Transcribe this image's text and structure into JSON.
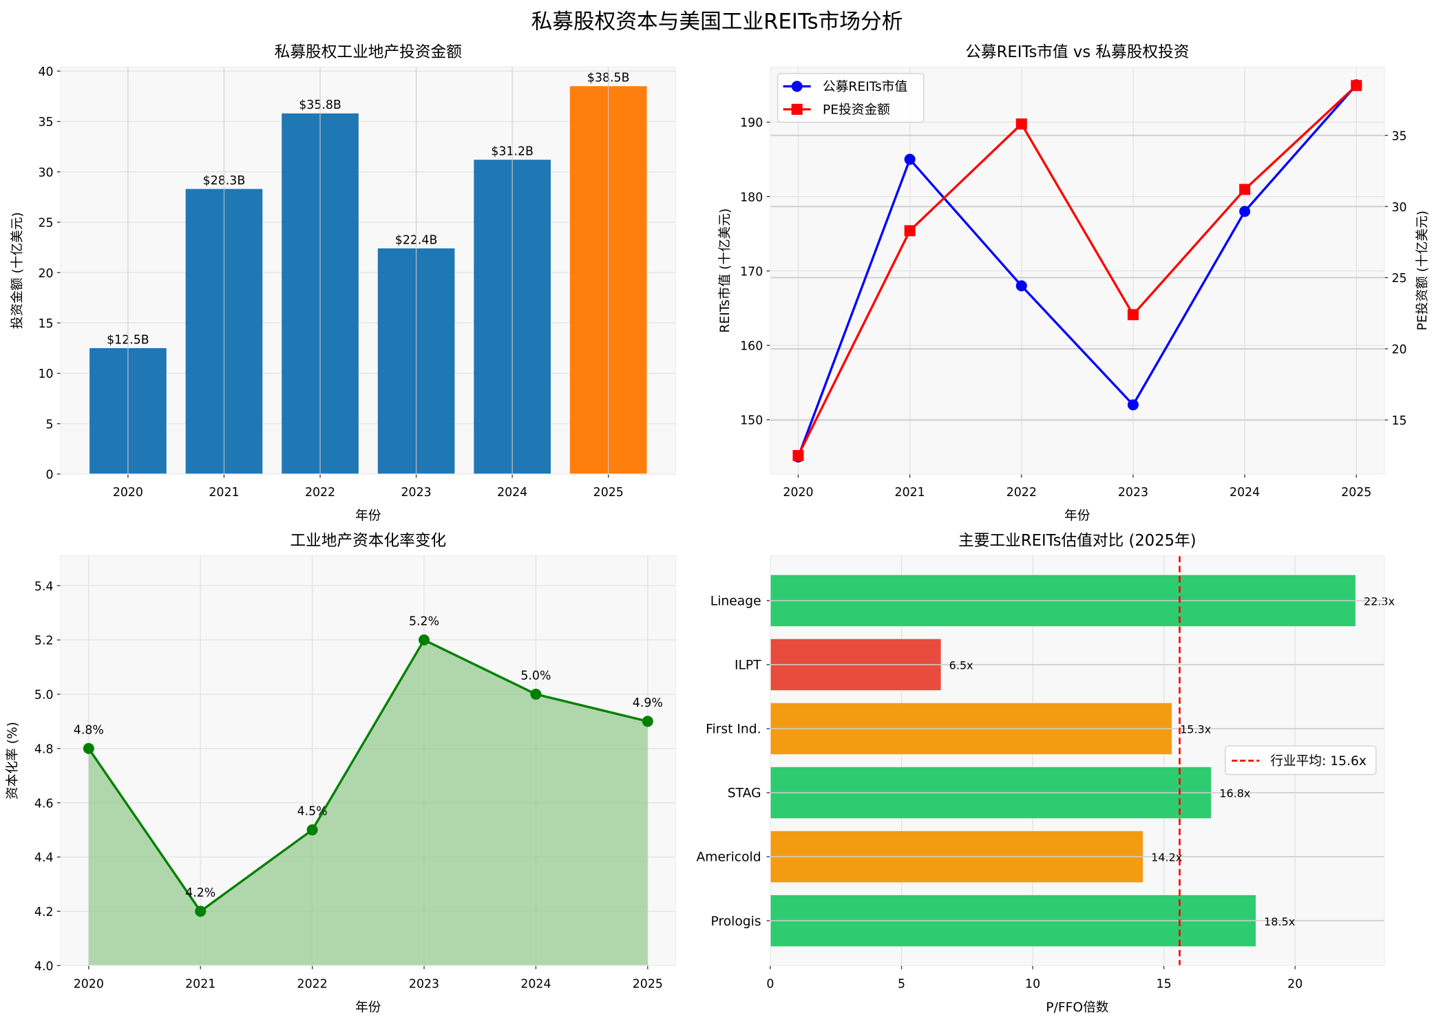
{
  "suptitle": "私募股权资本与美国工业REITs市场分析",
  "chart_data": [
    {
      "type": "bar",
      "title": "私募股权工业地产投资金额",
      "xlabel": "年份",
      "ylabel": "投资金额 (十亿美元)",
      "categories": [
        "2020",
        "2021",
        "2022",
        "2023",
        "2024",
        "2025"
      ],
      "values": [
        12.5,
        28.3,
        35.8,
        22.4,
        31.2,
        38.5
      ],
      "data_labels": [
        "$12.5B",
        "$28.3B",
        "$35.8B",
        "$22.4B",
        "$31.2B",
        "$38.5B"
      ],
      "colors": [
        "#1f77b4",
        "#1f77b4",
        "#1f77b4",
        "#1f77b4",
        "#1f77b4",
        "#ff7f0e"
      ],
      "ylim": [
        0,
        40.4
      ],
      "yticks": [
        0,
        5,
        10,
        15,
        20,
        25,
        30,
        35,
        40
      ],
      "grid": true
    },
    {
      "type": "line",
      "title": "公募REITs市值 vs 私募股权投资",
      "xlabel": "年份",
      "ylabel": "REITs市值 (十亿美元)",
      "ylabel_right": "PE投资额 (十亿美元)",
      "x": [
        "2020",
        "2021",
        "2022",
        "2023",
        "2024",
        "2025"
      ],
      "series": [
        {
          "name": "公募REITs市值",
          "axis": "left",
          "color": "#0000ff",
          "marker": "circle",
          "values": [
            145,
            185,
            168,
            152,
            178,
            195
          ]
        },
        {
          "name": "PE投资金额",
          "axis": "right",
          "color": "#ff0000",
          "marker": "square",
          "values": [
            12.5,
            28.3,
            35.8,
            22.4,
            31.2,
            38.5
          ]
        }
      ],
      "ylim": [
        142.7,
        197.4
      ],
      "yticks": [
        150,
        160,
        170,
        180,
        190
      ],
      "ylim_right": [
        11.2,
        39.8
      ],
      "yticks_right": [
        15,
        20,
        25,
        30,
        35
      ],
      "legend": "top-left",
      "grid": true
    },
    {
      "type": "area",
      "title": "工业地产资本化率变化",
      "xlabel": "年份",
      "ylabel": "资本化率 (%)",
      "x": [
        "2020",
        "2021",
        "2022",
        "2023",
        "2024",
        "2025"
      ],
      "values": [
        4.8,
        4.2,
        4.5,
        5.2,
        5.0,
        4.9
      ],
      "data_labels": [
        "4.8%",
        "4.2%",
        "4.5%",
        "5.2%",
        "5.0%",
        "4.9%"
      ],
      "color": "#008000",
      "fill_color": "#90c98a",
      "ylim": [
        4.0,
        5.51
      ],
      "yticks": [
        "4.0",
        "4.2",
        "4.4",
        "4.6",
        "4.8",
        "5.0",
        "5.2",
        "5.4"
      ],
      "grid": true
    },
    {
      "type": "barh",
      "title": "主要工业REITs估值对比 (2025年)",
      "xlabel": "P/FFO倍数",
      "categories": [
        "Prologis",
        "Americold",
        "STAG",
        "First Ind.",
        "ILPT",
        "Lineage"
      ],
      "values": [
        18.5,
        14.2,
        16.8,
        15.3,
        6.5,
        22.3
      ],
      "data_labels": [
        "18.5x",
        "14.2x",
        "16.8x",
        "15.3x",
        "6.5x",
        "22.3x"
      ],
      "colors": [
        "#2ecc71",
        "#f39c12",
        "#2ecc71",
        "#f39c12",
        "#e74c3c",
        "#2ecc71"
      ],
      "reference_line": {
        "value": 15.6,
        "label": "行业平均: 15.6x",
        "color": "#ff0000",
        "style": "dashed"
      },
      "xlim": [
        0,
        23.4
      ],
      "xticks": [
        0,
        5,
        10,
        15,
        20
      ],
      "legend": "center-right",
      "grid": true
    }
  ]
}
